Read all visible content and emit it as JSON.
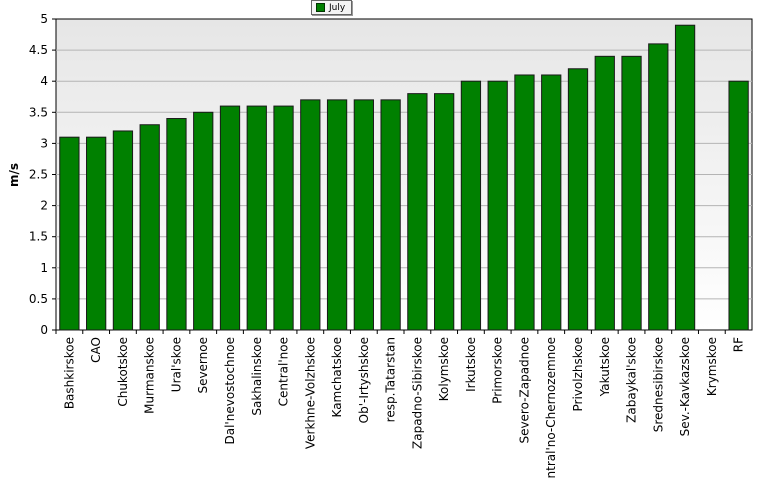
{
  "chart_data": {
    "type": "bar",
    "ylabel": "m/s",
    "xlabel": "",
    "ylim": [
      0,
      5
    ],
    "yticks": [
      "0",
      "0.5",
      "1",
      "1.5",
      "2",
      "2.5",
      "3",
      "3.5",
      "4",
      "4.5",
      "5"
    ],
    "grid": true,
    "legend_position": "top-center",
    "categories": [
      "Bashkirskoe",
      "CAO",
      "Chukotskoe",
      "Murmanskoe",
      "Ural'skoe",
      "Severnoe",
      "Dal'nevostochnoe",
      "Sakhalinskoe",
      "Central'noe",
      "Verkhne-Volzhskoe",
      "Kamchatskoe",
      "Ob'-Irtyshskoe",
      "resp.Tatarstan",
      "Zapadno-Sibirskoe",
      "Kolymskoe",
      "Irkutskoe",
      "Primorskoe",
      "Severo-Zapadnoe",
      "Central'no-Chernozemnoe",
      "Privolzhskoe",
      "Yakutskoe",
      "Zabaykal'skoe",
      "Srednesibirskoe",
      "Sev.-Kavkazskoe",
      "Krymskoe",
      "RF"
    ],
    "series": [
      {
        "name": "July",
        "color": "#008000",
        "values": [
          3.1,
          3.1,
          3.2,
          3.3,
          3.4,
          3.5,
          3.6,
          3.6,
          3.6,
          3.7,
          3.7,
          3.7,
          3.7,
          3.8,
          3.8,
          4.0,
          4.0,
          4.1,
          4.1,
          4.2,
          4.4,
          4.4,
          4.6,
          4.9,
          null,
          4.0
        ]
      }
    ]
  }
}
